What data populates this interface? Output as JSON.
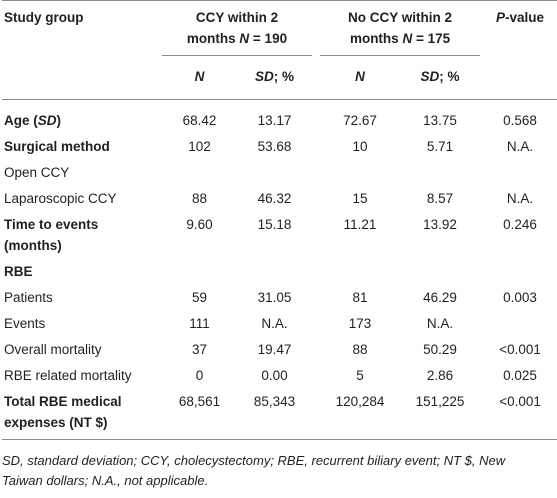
{
  "header": {
    "study_group": "Study group",
    "ccy_group_line1": "CCY within 2",
    "ccy_group_line2_prefix": "months ",
    "ccy_group_line2_n": "N",
    "ccy_group_line2_suffix": " = 190",
    "no_ccy_group_line1": "No CCY within 2",
    "no_ccy_group_line2_prefix": "months ",
    "no_ccy_group_line2_n": "N",
    "no_ccy_group_line2_suffix": " = 175",
    "p_value_p": "P",
    "p_value_rest": "-value",
    "sub_n": "N",
    "sub_sd": "SD",
    "sub_pct": "; %"
  },
  "rows": [
    {
      "label": "Age (",
      "label_italic": "SD",
      "label_end": ")",
      "bold": true,
      "v1": "68.42",
      "v2": "13.17",
      "v3": "72.67",
      "v4": "13.75",
      "p": "0.568"
    },
    {
      "label": "Surgical method",
      "bold": true,
      "v1": "102",
      "v2": "53.68",
      "v3": "10",
      "v4": "5.71",
      "p": "N.A."
    },
    {
      "label": "Open CCY",
      "bold": false,
      "v1": "",
      "v2": "",
      "v3": "",
      "v4": "",
      "p": ""
    },
    {
      "label": "Laparoscopic CCY",
      "bold": false,
      "v1": "88",
      "v2": "46.32",
      "v3": "15",
      "v4": "8.57",
      "p": "N.A."
    },
    {
      "label_line1": "Time to events",
      "label_line2": "(months)",
      "bold": true,
      "v1": "9.60",
      "v2": "15.18",
      "v3": "11.21",
      "v4": "13.92",
      "p": "0.246"
    },
    {
      "label": "RBE",
      "bold": true,
      "v1": "",
      "v2": "",
      "v3": "",
      "v4": "",
      "p": ""
    },
    {
      "label": "Patients",
      "bold": false,
      "v1": "59",
      "v2": "31.05",
      "v3": "81",
      "v4": "46.29",
      "p": "0.003"
    },
    {
      "label": "Events",
      "bold": false,
      "v1": "111",
      "v2": "N.A.",
      "v3": "173",
      "v4": "N.A.",
      "p": ""
    },
    {
      "label": "Overall mortality",
      "bold": false,
      "v1": "37",
      "v2": "19.47",
      "v3": "88",
      "v4": "50.29",
      "p": "<0.001"
    },
    {
      "label": "RBE related mortality",
      "bold": false,
      "v1": "0",
      "v2": "0.00",
      "v3": "5",
      "v4": "2.86",
      "p": "0.025"
    },
    {
      "label_line1": "Total RBE medical",
      "label_line2": "expenses (NT $)",
      "bold": true,
      "v1": "68,561",
      "v2": "85,343",
      "v3": "120,284",
      "v4": "151,225",
      "p": "<0.001"
    }
  ],
  "footnote": {
    "line1": "SD, standard deviation; CCY, cholecystectomy; RBE, recurrent biliary event; NT $, New",
    "line2": "Taiwan dollars; N.A., not applicable."
  }
}
